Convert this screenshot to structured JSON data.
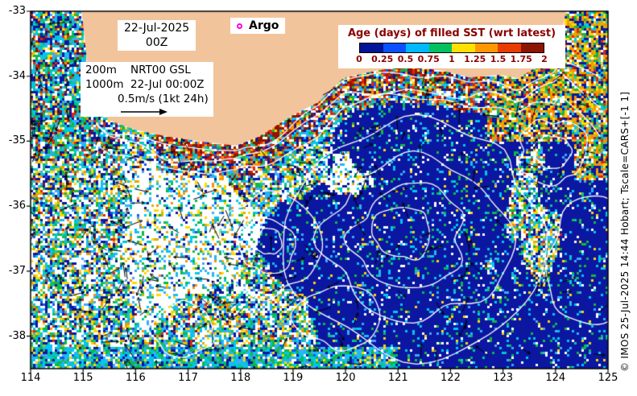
{
  "annotations": {
    "date_line1": "22-Jul-2025",
    "date_line2": "00Z",
    "argo_label": "Argo",
    "argo_marker_color": "#ff00dd",
    "level1": "200m",
    "level1_desc": "NRT00 GSL",
    "level2": "1000m",
    "level2_desc": "22-Jul 00:00Z",
    "speed_scale": "0.5m/s (1kt 24h)",
    "credit": "© IMOS 25-Jul-2025 14:44 Hobart; Tscale=CARS+[-1 1]"
  },
  "colorbar": {
    "title": "Age (days) of filled SST (wrt latest)",
    "title_color": "#8b0000",
    "tick_labels": [
      "0",
      "0.25",
      "0.5",
      "0.75",
      "1",
      "1.25",
      "1.5",
      "1.75",
      "2"
    ],
    "colors": [
      "#001498",
      "#0a50ff",
      "#00b8ff",
      "#00c060",
      "#ffe000",
      "#ff9800",
      "#e83c00",
      "#8c1400"
    ]
  },
  "axes": {
    "x_ticks": [
      "114",
      "115",
      "116",
      "117",
      "118",
      "119",
      "120",
      "121",
      "122",
      "123",
      "124",
      "125"
    ],
    "y_ticks": [
      "-33",
      "-34",
      "-35",
      "-36",
      "-37",
      "-38"
    ],
    "lon_range": [
      114,
      125
    ],
    "lat_range": [
      -33,
      -38.5
    ]
  },
  "map": {
    "land_color": "#f2c49c",
    "sea_background": "#ffffff",
    "frame_color": "#000000",
    "contour_color": "#ffffff",
    "vector_color": "#000000",
    "coastline": [
      [
        114.97,
        -33.0
      ],
      [
        115.04,
        -33.5
      ],
      [
        115.1,
        -34.0
      ],
      [
        115.16,
        -34.42
      ],
      [
        115.5,
        -34.68
      ],
      [
        115.98,
        -34.82
      ],
      [
        116.55,
        -34.92
      ],
      [
        117.2,
        -35.0
      ],
      [
        117.92,
        -35.07
      ],
      [
        118.35,
        -34.93
      ],
      [
        118.95,
        -34.62
      ],
      [
        119.48,
        -34.4
      ],
      [
        119.95,
        -34.03
      ],
      [
        120.55,
        -33.92
      ],
      [
        121.15,
        -33.84
      ],
      [
        121.88,
        -33.92
      ],
      [
        122.35,
        -34.02
      ],
      [
        122.95,
        -33.98
      ],
      [
        123.28,
        -34.03
      ],
      [
        123.62,
        -33.87
      ],
      [
        123.97,
        -33.6
      ],
      [
        124.12,
        -33.32
      ],
      [
        124.2,
        -33.0
      ]
    ],
    "palette": {
      "navy": "#0b17a0",
      "blue": "#1b54e8",
      "lblue": "#3fa8ff",
      "cyan": "#00c8f0",
      "teal": "#00c8a8",
      "green": "#11b844",
      "yellow": "#ffd800",
      "gold": "#d8b400",
      "orange": "#ff9000",
      "red": "#dc2810",
      "darkred": "#8c1600",
      "white": "#ffffff"
    }
  }
}
